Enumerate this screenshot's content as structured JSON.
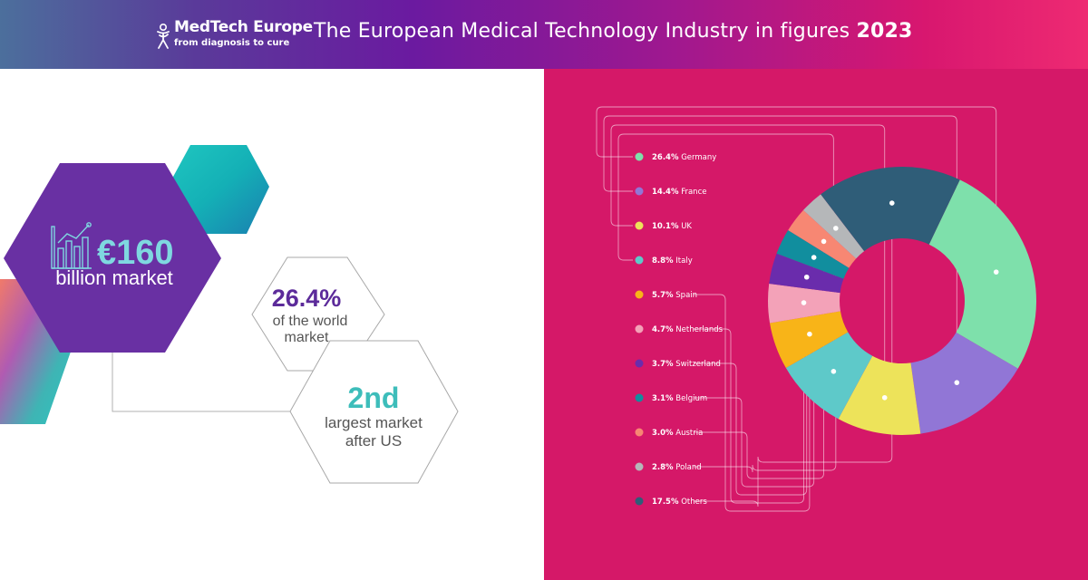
{
  "header": {
    "logo_name": "MedTech Europe",
    "logo_tagline": "from diagnosis to cure",
    "title": "The European Medical Technology Industry in figures",
    "year": "2023"
  },
  "stats": {
    "market_value": "€160",
    "market_label": "billion market",
    "world_share": "26.4%",
    "world_share_line1": "of the world",
    "world_share_line2": "market",
    "rank": "2nd",
    "rank_line1": "largest market",
    "rank_line2": "after US"
  },
  "colors": {
    "hex_purple": "#6930a3",
    "teal": "#16b7b7",
    "panel_pink": "#d51868",
    "rank_text": "#3dbdba"
  },
  "chart_data": {
    "type": "pie",
    "variant": "donut",
    "series": [
      {
        "label": "Germany",
        "pct_label": "26.4%",
        "value": 26.4,
        "color": "#7ee0ab"
      },
      {
        "label": "France",
        "pct_label": "14.4%",
        "value": 14.4,
        "color": "#9176d6"
      },
      {
        "label": "UK",
        "pct_label": "10.1%",
        "value": 10.1,
        "color": "#ede35a"
      },
      {
        "label": "Italy",
        "pct_label": "8.8%",
        "value": 8.8,
        "color": "#5ec9c9"
      },
      {
        "label": "Spain",
        "pct_label": "5.7%",
        "value": 5.7,
        "color": "#f8b418"
      },
      {
        "label": "Netherlands",
        "pct_label": "4.7%",
        "value": 4.7,
        "color": "#f3a2b8"
      },
      {
        "label": "Switzerland",
        "pct_label": "3.7%",
        "value": 3.7,
        "color": "#6a2cac"
      },
      {
        "label": "Belgium",
        "pct_label": "3.1%",
        "value": 3.1,
        "color": "#118e9e"
      },
      {
        "label": "Austria",
        "pct_label": "3.0%",
        "value": 3.0,
        "color": "#f78773"
      },
      {
        "label": "Poland",
        "pct_label": "2.8%",
        "value": 2.8,
        "color": "#b5b7b9"
      },
      {
        "label": "Others",
        "pct_label": "17.5%",
        "value": 17.5,
        "color": "#2f5d78"
      }
    ],
    "legend_position": "left"
  }
}
